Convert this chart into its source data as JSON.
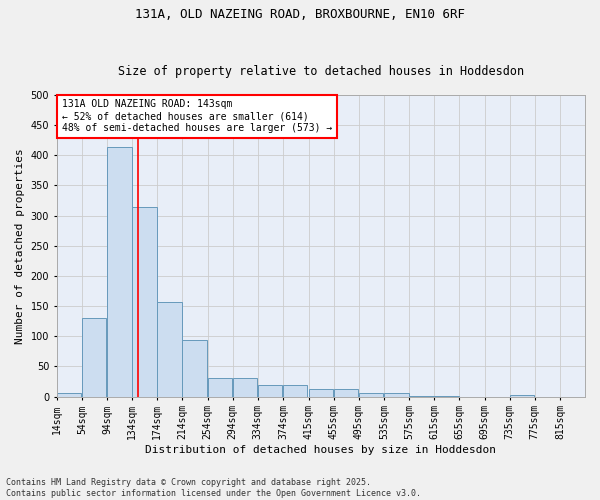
{
  "title1": "131A, OLD NAZEING ROAD, BROXBOURNE, EN10 6RF",
  "title2": "Size of property relative to detached houses in Hoddesdon",
  "xlabel": "Distribution of detached houses by size in Hoddesdon",
  "ylabel": "Number of detached properties",
  "footer1": "Contains HM Land Registry data © Crown copyright and database right 2025.",
  "footer2": "Contains public sector information licensed under the Open Government Licence v3.0.",
  "annotation_line1": "131A OLD NAZEING ROAD: 143sqm",
  "annotation_line2": "← 52% of detached houses are smaller (614)",
  "annotation_line3": "48% of semi-detached houses are larger (573) →",
  "bin_labels": [
    "14sqm",
    "54sqm",
    "94sqm",
    "134sqm",
    "174sqm",
    "214sqm",
    "254sqm",
    "294sqm",
    "334sqm",
    "374sqm",
    "415sqm",
    "455sqm",
    "495sqm",
    "535sqm",
    "575sqm",
    "615sqm",
    "655sqm",
    "695sqm",
    "735sqm",
    "775sqm",
    "815sqm"
  ],
  "bin_starts": [
    14,
    54,
    94,
    134,
    174,
    214,
    254,
    294,
    334,
    374,
    415,
    455,
    495,
    535,
    575,
    615,
    655,
    695,
    735,
    775,
    815
  ],
  "bar_values": [
    6,
    130,
    413,
    315,
    157,
    94,
    30,
    30,
    19,
    19,
    13,
    13,
    6,
    6,
    1,
    1,
    0,
    0,
    2,
    0,
    0
  ],
  "bar_color": "#ccddf0",
  "bar_edge_color": "#6699bb",
  "red_line_x": 143,
  "ylim": [
    0,
    500
  ],
  "yticks": [
    0,
    50,
    100,
    150,
    200,
    250,
    300,
    350,
    400,
    450,
    500
  ],
  "grid_color": "#cccccc",
  "bg_color": "#e8eef8",
  "fig_color": "#f0f0f0",
  "title_fontsize": 9,
  "subtitle_fontsize": 8.5,
  "axis_label_fontsize": 8,
  "tick_fontsize": 7,
  "annotation_fontsize": 7,
  "footer_fontsize": 6
}
